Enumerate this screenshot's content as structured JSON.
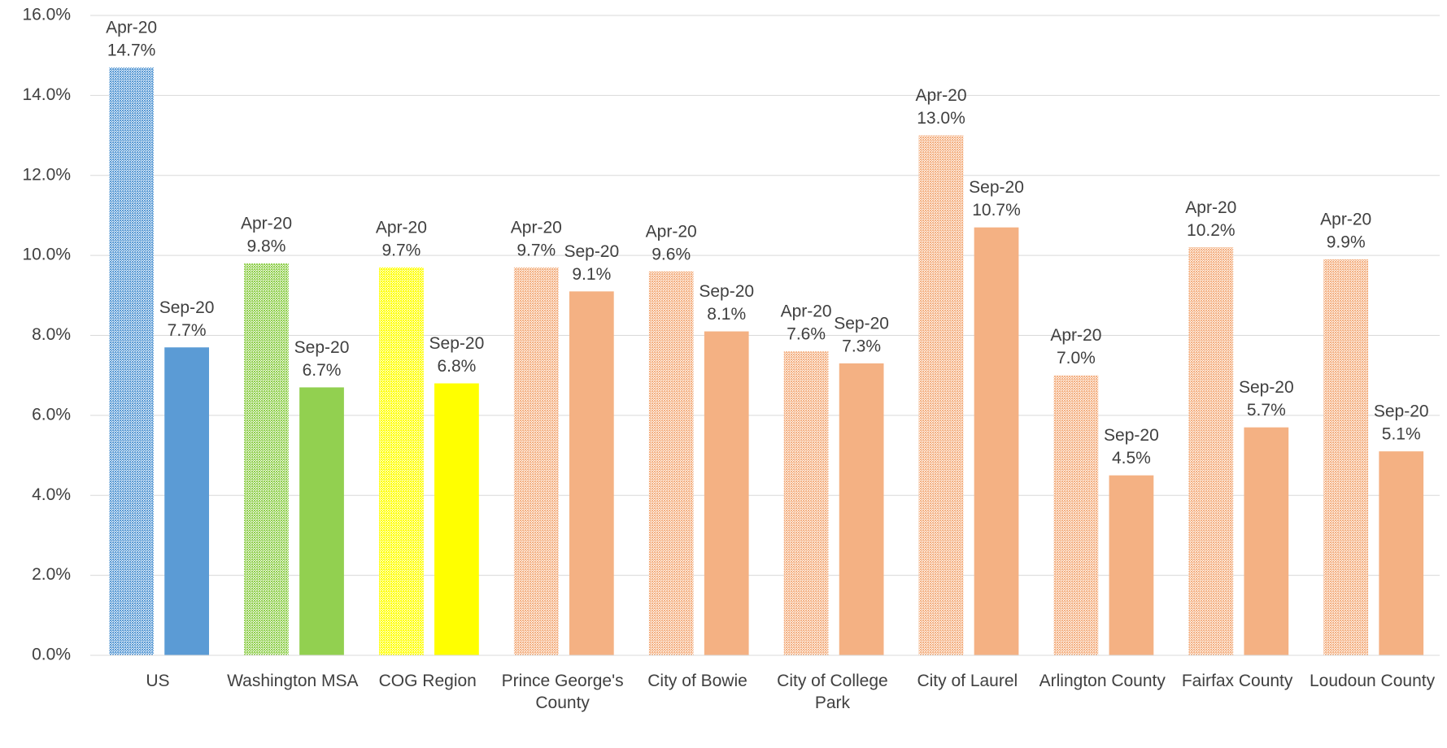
{
  "chart_data": {
    "type": "bar",
    "categories": [
      "US",
      "Washington MSA",
      "COG Region",
      "Prince George's County",
      "City of Bowie",
      "City of College Park",
      "City of Laurel",
      "Arlington County",
      "Fairfax County",
      "Loudoun County"
    ],
    "series": [
      {
        "name": "Apr-20",
        "pattern": "dotted",
        "colors": [
          "#5b9bd5",
          "#92d050",
          "#ffff00",
          "#f4b183",
          "#f4b183",
          "#f4b183",
          "#f4b183",
          "#f4b183",
          "#f4b183",
          "#f4b183"
        ],
        "values": [
          14.7,
          9.8,
          9.7,
          9.7,
          9.6,
          7.6,
          13.0,
          7.0,
          10.2,
          9.9
        ],
        "value_labels": [
          "14.7%",
          "9.8%",
          "9.7%",
          "9.7%",
          "9.6%",
          "7.6%",
          "13.0%",
          "7.0%",
          "10.2%",
          "9.9%"
        ]
      },
      {
        "name": "Sep-20",
        "pattern": "solid",
        "colors": [
          "#5b9bd5",
          "#92d050",
          "#ffff00",
          "#f4b183",
          "#f4b183",
          "#f4b183",
          "#f4b183",
          "#f4b183",
          "#f4b183",
          "#f4b183"
        ],
        "values": [
          7.7,
          6.7,
          6.8,
          9.1,
          8.1,
          7.3,
          10.7,
          4.5,
          5.7,
          5.1
        ],
        "value_labels": [
          "7.7%",
          "6.7%",
          "6.8%",
          "9.1%",
          "8.1%",
          "7.3%",
          "10.7%",
          "4.5%",
          "5.7%",
          "5.1%"
        ]
      }
    ],
    "ylim": [
      0,
      16
    ],
    "yticks": [
      {
        "value": 0,
        "label": "0.0%"
      },
      {
        "value": 2,
        "label": "2.0%"
      },
      {
        "value": 4,
        "label": "4.0%"
      },
      {
        "value": 6,
        "label": "6.0%"
      },
      {
        "value": 8,
        "label": "8.0%"
      },
      {
        "value": 10,
        "label": "10.0%"
      },
      {
        "value": 12,
        "label": "12.0%"
      },
      {
        "value": 14,
        "label": "14.0%"
      },
      {
        "value": 16,
        "label": "16.0%"
      }
    ],
    "grid": true
  }
}
